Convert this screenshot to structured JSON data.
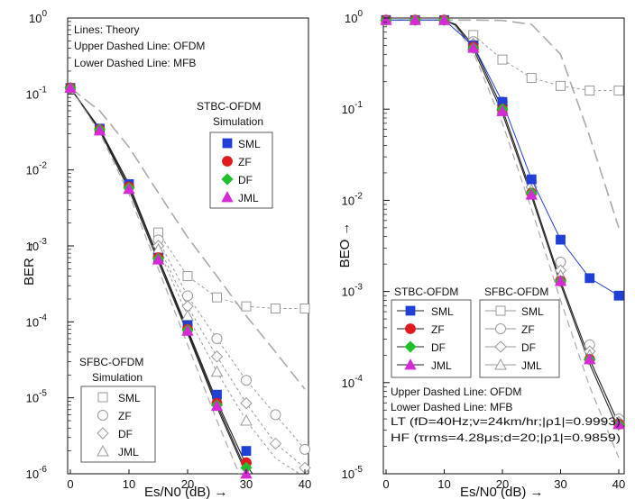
{
  "chart_data": [
    {
      "type": "line",
      "xlabel": "Es/N0 (dB) →",
      "ylabel": "BER →",
      "xlim": [
        0,
        40
      ],
      "ylim": [
        1e-06,
        1
      ],
      "xticks": [
        "0",
        "10",
        "20",
        "30",
        "40"
      ],
      "yticks": [
        {
          "base": "10",
          "exp": "0"
        },
        {
          "base": "10",
          "exp": "-1"
        },
        {
          "base": "10",
          "exp": "-2"
        },
        {
          "base": "10",
          "exp": "-3"
        },
        {
          "base": "10",
          "exp": "-4"
        },
        {
          "base": "10",
          "exp": "-5"
        },
        {
          "base": "10",
          "exp": "-6"
        }
      ],
      "yscale": "log",
      "grid": false,
      "notes": [
        "Lines: Theory",
        "Upper Dashed Line: OFDM",
        "Lower Dashed Line: MFB"
      ],
      "legends": [
        {
          "title": [
            "STBC-OFDM",
            "Simulation"
          ],
          "entries": [
            "SML",
            "ZF",
            "DF",
            "JML"
          ],
          "placement": "upper-right"
        },
        {
          "title": [
            "SFBC-OFDM",
            "Simulation"
          ],
          "entries": [
            "SML",
            "ZF",
            "DF",
            "JML"
          ],
          "placement": "lower-left"
        }
      ],
      "theory_lines": [
        {
          "style": "solid",
          "x": [
            0,
            5,
            10,
            15,
            20,
            25,
            30,
            32
          ],
          "y": [
            0.12,
            0.035,
            0.0065,
            0.0007,
            8e-05,
            9e-06,
            1.3e-06,
            8e-07
          ]
        },
        {
          "style": "solid",
          "x": [
            0,
            5,
            10,
            15,
            20,
            25,
            30,
            32
          ],
          "y": [
            0.12,
            0.034,
            0.006,
            0.00068,
            7.5e-05,
            8.2e-06,
            1.1e-06,
            6e-07
          ]
        },
        {
          "style": "solid",
          "x": [
            0,
            5,
            10,
            15,
            20,
            25,
            30,
            32
          ],
          "y": [
            0.12,
            0.033,
            0.0055,
            0.00062,
            7e-05,
            7.5e-06,
            1e-06,
            5e-07
          ]
        },
        {
          "style": "dashed-upper",
          "x": [
            0,
            5,
            10,
            15,
            20,
            25,
            30,
            35,
            40
          ],
          "y": [
            0.12,
            0.06,
            0.02,
            0.005,
            0.0013,
            0.0004,
            0.00012,
            4e-05,
            1.3e-05
          ]
        },
        {
          "style": "dashed-lower",
          "x": [
            0,
            5,
            10,
            15,
            20,
            25,
            30,
            32
          ],
          "y": [
            0.12,
            0.031,
            0.0048,
            0.0005,
            5e-05,
            5e-06,
            6e-07,
            3e-07
          ]
        }
      ],
      "sfbc_dotted_lines": [
        {
          "x": [
            15,
            20,
            25,
            30,
            35,
            40
          ],
          "y": [
            0.0015,
            0.0004,
            0.00021,
            0.00016,
            0.00015,
            0.00015
          ]
        },
        {
          "x": [
            15,
            20,
            25,
            30,
            35,
            40
          ],
          "y": [
            0.0012,
            0.00022,
            6e-05,
            1.7e-05,
            6e-06,
            2.1e-06
          ]
        },
        {
          "x": [
            15,
            20,
            25,
            30,
            35,
            40
          ],
          "y": [
            0.001,
            0.00016,
            3.5e-05,
            8.5e-06,
            2.5e-06,
            1.2e-06
          ]
        },
        {
          "x": [
            15,
            20,
            25,
            30,
            35,
            40
          ],
          "y": [
            0.0009,
            0.00012,
            2.2e-05,
            5e-06,
            1.6e-06,
            9e-07
          ]
        }
      ],
      "series": [
        {
          "name": "SML",
          "group": "STBC-OFDM",
          "x": [
            0,
            5,
            10,
            15,
            20,
            25,
            30
          ],
          "y": [
            0.12,
            0.035,
            0.0065,
            0.0007,
            9e-05,
            1.1e-05,
            2e-06
          ]
        },
        {
          "name": "ZF",
          "group": "STBC-OFDM",
          "x": [
            0,
            5,
            10,
            15,
            20,
            25,
            30
          ],
          "y": [
            0.12,
            0.034,
            0.006,
            0.0007,
            8e-05,
            8.5e-06,
            1.4e-06
          ]
        },
        {
          "name": "DF",
          "group": "STBC-OFDM",
          "x": [
            0,
            5,
            10,
            15,
            20,
            25,
            30
          ],
          "y": [
            0.12,
            0.034,
            0.0058,
            0.00068,
            7.8e-05,
            8e-06,
            1.2e-06
          ]
        },
        {
          "name": "JML",
          "group": "STBC-OFDM",
          "x": [
            0,
            5,
            10,
            15,
            20,
            25,
            30
          ],
          "y": [
            0.12,
            0.033,
            0.0056,
            0.00066,
            7.6e-05,
            7.8e-06,
            1e-06
          ]
        },
        {
          "name": "SML",
          "group": "SFBC-OFDM",
          "x": [
            15,
            20,
            25,
            30,
            35,
            40
          ],
          "y": [
            0.0015,
            0.0004,
            0.00021,
            0.00016,
            0.00015,
            0.00015
          ]
        },
        {
          "name": "ZF",
          "group": "SFBC-OFDM",
          "x": [
            15,
            20,
            25,
            30,
            35,
            40
          ],
          "y": [
            0.0012,
            0.00022,
            6e-05,
            1.7e-05,
            6e-06,
            2.1e-06
          ]
        },
        {
          "name": "DF",
          "group": "SFBC-OFDM",
          "x": [
            15,
            20,
            25,
            30,
            35,
            40
          ],
          "y": [
            0.001,
            0.00016,
            3.5e-05,
            8.5e-06,
            2.5e-06,
            1.2e-06
          ]
        },
        {
          "name": "JML",
          "group": "SFBC-OFDM",
          "x": [
            15,
            20,
            25,
            30
          ],
          "y": [
            0.0009,
            0.00012,
            2.2e-05,
            5e-06
          ]
        }
      ]
    },
    {
      "type": "line",
      "xlabel": "Es/N0 (dB) →",
      "ylabel": "BEO →",
      "xlim": [
        0,
        40
      ],
      "ylim": [
        1e-05,
        1
      ],
      "xticks": [
        "0",
        "10",
        "20",
        "30",
        "40"
      ],
      "yticks": [
        {
          "base": "10",
          "exp": "0"
        },
        {
          "base": "10",
          "exp": "-1"
        },
        {
          "base": "10",
          "exp": "-2"
        },
        {
          "base": "10",
          "exp": "-3"
        },
        {
          "base": "10",
          "exp": "-4"
        },
        {
          "base": "10",
          "exp": "-5"
        }
      ],
      "yscale": "log",
      "grid": false,
      "notes": [
        "Upper Dashed Line: OFDM",
        "Lower Dashed Line: MFB",
        "LT (fD=40Hz;v=24km/hr;|ρ1|=0.9993)",
        "HF (τrms=4.28μs;d=20;|ρ1|=0.9859)"
      ],
      "legends": [
        {
          "title": [
            "STBC-OFDM"
          ],
          "entries": [
            "SML",
            "ZF",
            "DF",
            "JML"
          ],
          "placement": "lower-middle"
        },
        {
          "title": [
            "SFBC-OFDM"
          ],
          "entries": [
            "SML",
            "ZF",
            "DF",
            "JML"
          ],
          "placement": "lower-middle"
        }
      ],
      "theory_lines": [
        {
          "style": "solid",
          "x": [
            0,
            5,
            10,
            12,
            15,
            20,
            25,
            30,
            35,
            40
          ],
          "y": [
            0.95,
            0.95,
            0.95,
            0.85,
            0.5,
            0.1,
            0.012,
            0.0013,
            0.00018,
            3.5e-05
          ]
        },
        {
          "style": "solid",
          "x": [
            0,
            5,
            10,
            12,
            15,
            20,
            25,
            30,
            35,
            40
          ],
          "y": [
            0.95,
            0.95,
            0.95,
            0.83,
            0.46,
            0.09,
            0.011,
            0.0012,
            0.00016,
            3e-05
          ]
        },
        {
          "style": "dashed-upper",
          "x": [
            0,
            5,
            10,
            15,
            20,
            25,
            30,
            35,
            40
          ],
          "y": [
            0.95,
            0.95,
            0.95,
            0.95,
            0.94,
            0.85,
            0.4,
            0.05,
            0.005
          ]
        },
        {
          "style": "dashed-lower",
          "x": [
            0,
            5,
            10,
            12,
            15,
            20,
            25,
            30,
            35,
            40
          ],
          "y": [
            0.95,
            0.95,
            0.95,
            0.8,
            0.42,
            0.07,
            0.008,
            0.0008,
            9e-05,
            1.5e-05
          ]
        }
      ],
      "series": [
        {
          "name": "SML",
          "group": "STBC-OFDM",
          "x": [
            0,
            5,
            10,
            15,
            20,
            25,
            30,
            35,
            40
          ],
          "y": [
            0.95,
            0.95,
            0.95,
            0.5,
            0.12,
            0.017,
            0.0037,
            0.0014,
            0.0009
          ]
        },
        {
          "name": "ZF",
          "group": "STBC-OFDM",
          "x": [
            0,
            5,
            10,
            15,
            20,
            25,
            30,
            35,
            40
          ],
          "y": [
            0.95,
            0.95,
            0.95,
            0.48,
            0.1,
            0.012,
            0.0013,
            0.00018,
            3.5e-05
          ]
        },
        {
          "name": "DF",
          "group": "STBC-OFDM",
          "x": [
            0,
            5,
            10,
            15,
            20,
            25,
            30,
            35,
            40
          ],
          "y": [
            0.95,
            0.95,
            0.95,
            0.47,
            0.1,
            0.012,
            0.0013,
            0.00018,
            3.5e-05
          ]
        },
        {
          "name": "JML",
          "group": "STBC-OFDM",
          "x": [
            0,
            5,
            10,
            15,
            20,
            25,
            30,
            35,
            40
          ],
          "y": [
            0.95,
            0.95,
            0.95,
            0.47,
            0.095,
            0.0115,
            0.0013,
            0.00018,
            3.5e-05
          ]
        },
        {
          "name": "SML",
          "group": "SFBC-OFDM",
          "x": [
            15,
            20,
            25,
            30,
            35,
            40
          ],
          "y": [
            0.65,
            0.35,
            0.22,
            0.18,
            0.16,
            0.16
          ]
        },
        {
          "name": "ZF",
          "group": "SFBC-OFDM",
          "x": [
            15,
            20,
            25,
            30,
            35,
            40
          ],
          "y": [
            0.55,
            0.12,
            0.016,
            0.0021,
            0.00026,
            4e-05
          ]
        },
        {
          "name": "DF",
          "group": "SFBC-OFDM",
          "x": [
            15,
            20,
            25,
            30,
            35,
            40
          ],
          "y": [
            0.52,
            0.11,
            0.014,
            0.0017,
            0.00022,
            3.7e-05
          ]
        },
        {
          "name": "JML",
          "group": "SFBC-OFDM",
          "x": [
            15,
            20,
            25,
            30,
            35,
            40
          ],
          "y": [
            0.5,
            0.1,
            0.013,
            0.0015,
            0.0002,
            3.5e-05
          ]
        }
      ]
    }
  ],
  "style": {
    "SML": {
      "marker": "square",
      "stbc_color": "#1f3fd6"
    },
    "ZF": {
      "marker": "circle",
      "stbc_color": "#e01b1b"
    },
    "DF": {
      "marker": "diamond",
      "stbc_color": "#1fbf2a"
    },
    "JML": {
      "marker": "triangle",
      "stbc_color": "#d62ad6"
    },
    "sfbc_color": "#9a9a9a",
    "line_color": "#222222",
    "dashed_color": "#aaaaaa"
  }
}
